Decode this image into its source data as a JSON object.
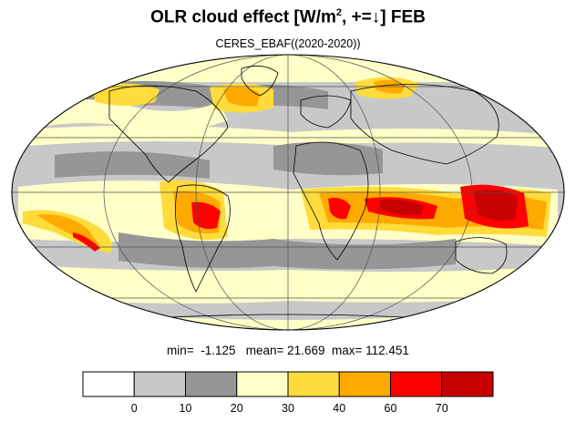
{
  "title": {
    "prefix": "OLR cloud effect [W/m",
    "superscript": "2",
    "suffix": ", +=↓]  FEB"
  },
  "subtitle": "CERES_EBAF((2020-2020))",
  "stats": {
    "min_label": "min=",
    "min_value": "-1.125",
    "mean_label": "mean=",
    "mean_value": "21.669",
    "max_label": "max=",
    "max_value": "112.451"
  },
  "colorbar": {
    "colors": [
      "#ffffff",
      "#c8c8c8",
      "#969696",
      "#ffffc8",
      "#ffdc3c",
      "#ffaa00",
      "#ff0000",
      "#c80000"
    ],
    "tick_labels": [
      "0",
      "10",
      "20",
      "30",
      "40",
      "60",
      "70"
    ]
  },
  "map": {
    "projection": "mollweide",
    "land_outline_color": "#000000",
    "grid_color": "#505050"
  }
}
